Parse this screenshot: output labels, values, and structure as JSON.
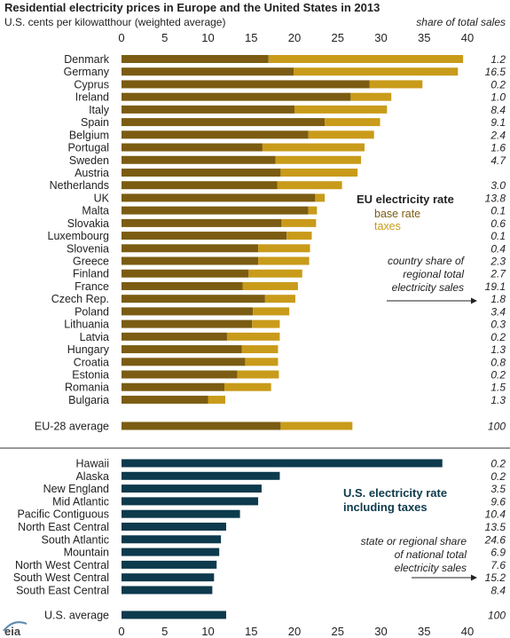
{
  "title": "Residential electricity prices in Europe and the United States in 2013",
  "subtitle": "U.S. cents per kilowatthour (weighted average)",
  "share_header": "share of total sales",
  "logo_text": "eia",
  "colors": {
    "eu_base": "#7b5c12",
    "eu_taxes": "#c99b1a",
    "eu_legend_title": "#222222",
    "us_bar": "#0d3a4c",
    "us_legend_title": "#0d3a4c",
    "separator": "#333333"
  },
  "eu_legend": {
    "title": "EU electricity rate",
    "base": "base rate",
    "taxes": "taxes",
    "note_lines": [
      "country share of",
      "regional total",
      "electricity sales"
    ]
  },
  "us_legend": {
    "title_lines": [
      "U.S. electricity rate",
      "including taxes"
    ],
    "note_lines": [
      "state or regional share",
      "of national total",
      "electricity sales"
    ]
  },
  "chart_data": [
    {
      "type": "bar",
      "orientation": "horizontal",
      "stacked": true,
      "title": "EU electricity rate",
      "series": [
        {
          "name": "base rate",
          "values": [
            17.0,
            19.9,
            28.7,
            26.5,
            20.0,
            23.5,
            21.6,
            16.3,
            17.8,
            18.4,
            18.0,
            22.4,
            21.6,
            18.5,
            19.1,
            15.8,
            15.8,
            14.7,
            14.0,
            16.6,
            15.2,
            15.1,
            12.2,
            13.9,
            14.3,
            13.4,
            11.9,
            10.0
          ]
        },
        {
          "name": "taxes",
          "values": [
            22.5,
            19.0,
            6.1,
            4.7,
            10.7,
            6.4,
            7.6,
            11.8,
            9.9,
            8.9,
            7.5,
            1.1,
            1.0,
            4.0,
            2.9,
            6.0,
            5.9,
            6.2,
            6.4,
            3.5,
            4.2,
            3.2,
            6.1,
            4.2,
            3.8,
            4.8,
            5.4,
            2.0
          ]
        }
      ],
      "categories": [
        "Denmark",
        "Germany",
        "Cyprus",
        "Ireland",
        "Italy",
        "Spain",
        "Belgium",
        "Portugal",
        "Sweden",
        "Austria",
        "Netherlands",
        "UK",
        "Malta",
        "Slovakia",
        "Luxembourg",
        "Slovenia",
        "Greece",
        "Finland",
        "France",
        "Czech Rep.",
        "Poland",
        "Lithuania",
        "Latvia",
        "Hungary",
        "Croatia",
        "Estonia",
        "Romania",
        "Bulgaria"
      ],
      "share_labels": [
        "1.2",
        "16.5",
        "0.2",
        "1.0",
        "8.4",
        "9.1",
        "2.4",
        "1.6",
        "4.7",
        "",
        "3.0",
        "13.8",
        "0.1",
        "0.6",
        "0.1",
        "0.4",
        "2.3",
        "2.7",
        "19.1",
        "1.8",
        "3.4",
        "0.3",
        "0.2",
        "1.3",
        "0.8",
        "0.2",
        "1.5",
        "1.3"
      ],
      "average": {
        "label": "EU-28 average",
        "base": 18.4,
        "taxes": 8.3,
        "share": "100"
      }
    },
    {
      "type": "bar",
      "orientation": "horizontal",
      "title": "U.S. electricity rate including taxes",
      "categories": [
        "Hawaii",
        "Alaska",
        "New England",
        "Mid Atlantic",
        "Pacific Contiguous",
        "North East Central",
        "South Atlantic",
        "Mountain",
        "North West Central",
        "South West Central",
        "South East Central"
      ],
      "values": [
        37.1,
        18.3,
        16.2,
        15.8,
        13.7,
        12.1,
        11.5,
        11.3,
        11.0,
        10.7,
        10.5
      ],
      "share_labels": [
        "0.2",
        "0.2",
        "3.5",
        "9.6",
        "10.4",
        "13.5",
        "24.6",
        "6.9",
        "7.6",
        "15.2",
        "8.4"
      ],
      "average": {
        "label": "U.S. average",
        "value": 12.1,
        "share": "100"
      }
    }
  ],
  "axis": {
    "xlim": [
      0,
      40
    ],
    "ticks": [
      "0",
      "5",
      "10",
      "15",
      "20",
      "25",
      "30",
      "35",
      "40"
    ]
  }
}
